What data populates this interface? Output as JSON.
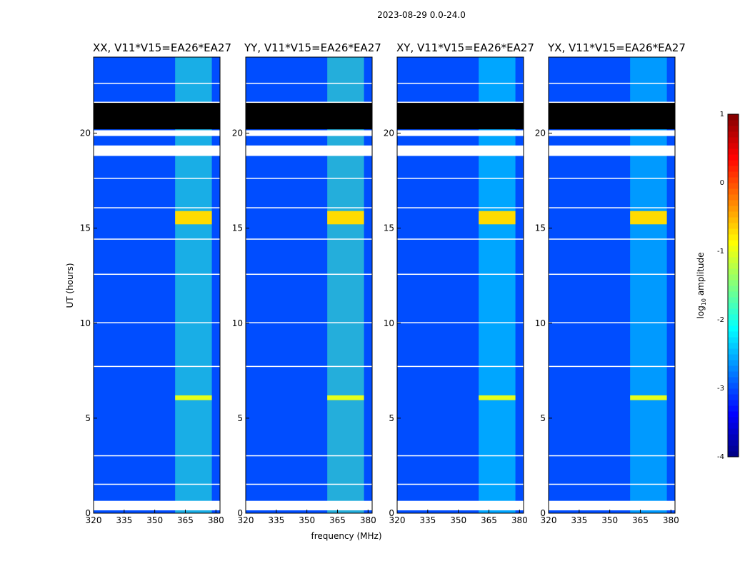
{
  "suptitle": "2023-08-29 0.0-24.0",
  "chart_data": {
    "type": "heatmap",
    "suptitle": "2023-08-29 0.0-24.0",
    "xlabel": "frequency (MHz)",
    "ylabel": "UT (hours)",
    "xlim": [
      320,
      382
    ],
    "ylim": [
      0,
      24
    ],
    "xticks": [
      320,
      335,
      350,
      365,
      380
    ],
    "yticks": [
      0,
      5,
      10,
      15,
      20
    ],
    "colorbar": {
      "label": "log10 amplitude",
      "label_text": "log",
      "label_sub": "10",
      "label_rest": " amplitude",
      "range": [
        -4,
        1
      ],
      "ticks": [
        1,
        0,
        -1,
        -2,
        -3,
        -4
      ],
      "colormap": "jet"
    },
    "background_level": -3.0,
    "rfi_band_mhz": [
      360,
      378
    ],
    "blank_bands_hours": [
      [
        0.15,
        0.65
      ],
      [
        1.5,
        1.55
      ],
      [
        3.0,
        3.05
      ],
      [
        7.7,
        7.75
      ],
      [
        10.0,
        10.05
      ],
      [
        12.55,
        12.6
      ],
      [
        14.4,
        14.45
      ],
      [
        16.05,
        16.1
      ],
      [
        17.6,
        17.65
      ],
      [
        18.8,
        19.35
      ],
      [
        19.85,
        20.15
      ],
      [
        21.6,
        21.65
      ],
      [
        22.6,
        22.65
      ]
    ],
    "flagged_bands_hours": [
      [
        20.2,
        21.6
      ]
    ],
    "bright_blocks": [
      {
        "hours": [
          15.2,
          15.9
        ],
        "level": -0.7
      },
      {
        "hours": [
          5.95,
          6.2
        ],
        "level": -1.0
      }
    ],
    "panels": [
      {
        "title": "XX, V11*V15=EA26*EA27",
        "rfi_level": -1.9
      },
      {
        "title": "YY, V11*V15=EA26*EA27",
        "rfi_level": -1.8
      },
      {
        "title": "XY, V11*V15=EA26*EA27",
        "rfi_level": -2.2
      },
      {
        "title": "YX, V11*V15=EA26*EA27",
        "rfi_level": -2.3
      }
    ]
  }
}
